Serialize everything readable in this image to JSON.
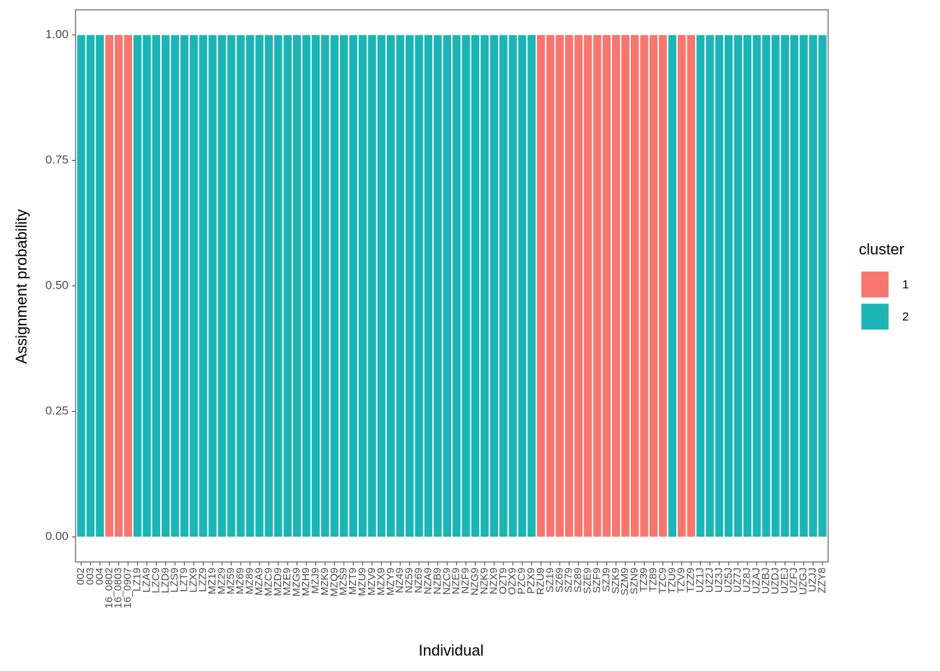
{
  "chart_data": {
    "type": "stacked_bar",
    "x_label": "Individual",
    "y_label": "Assignment probability",
    "legend_title": "cluster",
    "legend_position": "right",
    "categories": [
      "002",
      "003",
      "004",
      "16_0802",
      "16_0803",
      "16_0907",
      "LZ19",
      "LZA9",
      "LZC9",
      "LZD9",
      "LZS9",
      "LZT9",
      "LZX9",
      "LZZ9",
      "MZ19",
      "MZ29",
      "MZ59",
      "MZ69",
      "MZ89",
      "MZA9",
      "MZC9",
      "MZD9",
      "MZE9",
      "MZG9",
      "MZH9",
      "MZJ9",
      "MZK9",
      "MZQ9",
      "MZS9",
      "MZT9",
      "MZU9",
      "MZV9",
      "MZX9",
      "MZY9",
      "NZ49",
      "NZ59",
      "NZ69",
      "NZA9",
      "NZB9",
      "NZC9",
      "NZE9",
      "NZF9",
      "NZG9",
      "NZK9",
      "NZX9",
      "OZT9",
      "OZX9",
      "PZC9",
      "PZX9",
      "RZU9",
      "SZ19",
      "SZ69",
      "SZ79",
      "SZ89",
      "SZE9",
      "SZF9",
      "SZJ9",
      "SZK9",
      "SZM9",
      "SZN9",
      "TZ39",
      "TZ89",
      "TZC9",
      "TZU9",
      "TZV9",
      "TZZ9",
      "UZ1J",
      "UZ2J",
      "UZ3J",
      "UZ5J",
      "UZ7J",
      "UZ8J",
      "UZAJ",
      "UZBJ",
      "UZDJ",
      "UZEJ",
      "UZFJ",
      "UZGJ",
      "UZJJ",
      "ZZY8"
    ],
    "series": [
      {
        "name": "1",
        "color": "#f8766d",
        "values": [
          0,
          0,
          0,
          1,
          1,
          1,
          0,
          0,
          0,
          0,
          0,
          0,
          0,
          0,
          0,
          0,
          0,
          0,
          0,
          0,
          0,
          0,
          0,
          0,
          0,
          0,
          0,
          0,
          0,
          0,
          0,
          0,
          0,
          0,
          0,
          0,
          0,
          0,
          0,
          0,
          0,
          0,
          0,
          0,
          0,
          0,
          0,
          0,
          0,
          1,
          1,
          1,
          1,
          1,
          1,
          1,
          1,
          1,
          1,
          1,
          1,
          1,
          1,
          0,
          1,
          1,
          0,
          0,
          0,
          0,
          0,
          0,
          0,
          0,
          0,
          0,
          0,
          0,
          0,
          0
        ]
      },
      {
        "name": "2",
        "color": "#1bb5b5",
        "values": [
          1,
          1,
          1,
          0,
          0,
          0,
          1,
          1,
          1,
          1,
          1,
          1,
          1,
          1,
          1,
          1,
          1,
          1,
          1,
          1,
          1,
          1,
          1,
          1,
          1,
          1,
          1,
          1,
          1,
          1,
          1,
          1,
          1,
          1,
          1,
          1,
          1,
          1,
          1,
          1,
          1,
          1,
          1,
          1,
          1,
          1,
          1,
          1,
          1,
          0,
          0,
          0,
          0,
          0,
          0,
          0,
          0,
          0,
          0,
          0,
          0,
          0,
          0,
          1,
          0,
          0,
          1,
          1,
          1,
          1,
          1,
          1,
          1,
          1,
          1,
          1,
          1,
          1,
          1,
          1
        ]
      }
    ],
    "ylim": [
      -0.05,
      1.05
    ],
    "yticks": [
      {
        "value": 0,
        "label": "0.00"
      },
      {
        "value": 0.25,
        "label": "0.25"
      },
      {
        "value": 0.5,
        "label": "0.50"
      },
      {
        "value": 0.75,
        "label": "0.75"
      },
      {
        "value": 1,
        "label": "1.00"
      }
    ]
  }
}
